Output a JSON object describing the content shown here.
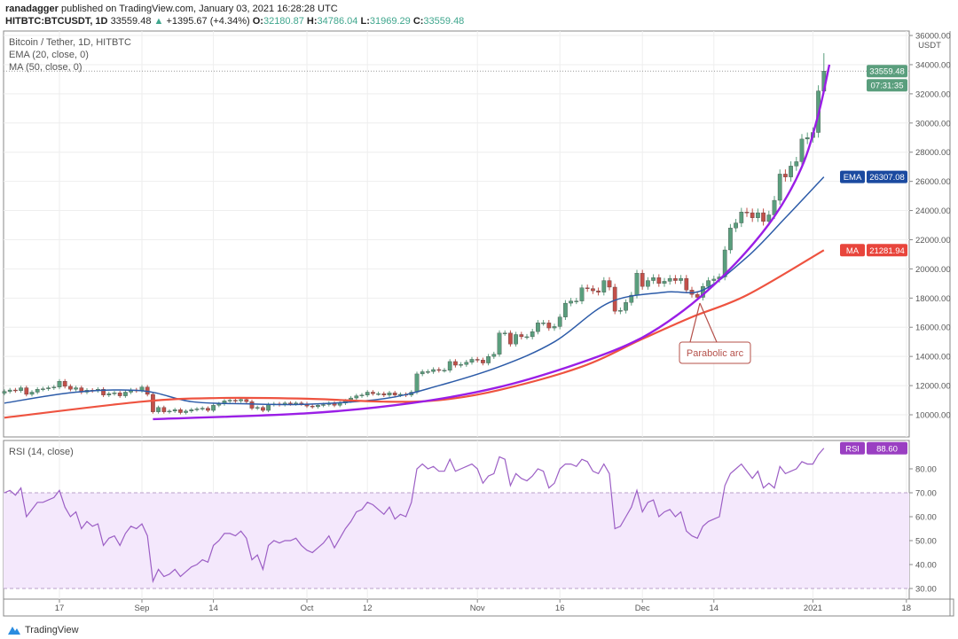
{
  "header": {
    "author": "ranadagger",
    "published": "published on TradingView.com, January 03, 2021 16:28:28 UTC",
    "symbol": "HITBTC:BTCUSDT, 1D",
    "last": "33559.48",
    "change": "+1395.67 (+4.34%)",
    "o_label": "O:",
    "o": "32180.87",
    "h_label": "H:",
    "h": "34786.04",
    "l_label": "L:",
    "l": "31969.29",
    "c_label": "C:",
    "c": "33559.48"
  },
  "legend": {
    "title": "Bitcoin / Tether, 1D, HITBTC",
    "ema": "EMA (20, close, 0)",
    "ma": "MA (50, close, 0)",
    "rsi": "RSI (14, close)"
  },
  "footer": {
    "brand": "TradingView"
  },
  "colors": {
    "up": "#5a9e7d",
    "down": "#c2504a",
    "ema": "#2c5ba8",
    "ma": "#ee5340",
    "arc": "#9a1ee6",
    "rsi": "#9c5fc5",
    "rsi_band": "#f4e8fc",
    "annotation": "#b5504a"
  },
  "chart_data": [
    {
      "type": "candlestick",
      "title": "Bitcoin / Tether, 1D, HITBTC",
      "currency": "USDT",
      "ylim": [
        9000,
        36000
      ],
      "y_ticks": [
        "36000.00",
        "34000.00",
        "32000.00",
        "30000.00",
        "28000.00",
        "26000.00",
        "24000.00",
        "22000.00",
        "20000.00",
        "18000.00",
        "16000.00",
        "14000.00",
        "12000.00",
        "10000.00"
      ],
      "x_ticks": [
        {
          "label": "17",
          "date": "2020-08-17"
        },
        {
          "label": "Sep",
          "date": "2020-09-01"
        },
        {
          "label": "14",
          "date": "2020-09-14"
        },
        {
          "label": "Oct",
          "date": "2020-10-01"
        },
        {
          "label": "12",
          "date": "2020-10-12"
        },
        {
          "label": "Nov",
          "date": "2020-11-01"
        },
        {
          "label": "16",
          "date": "2020-11-16"
        },
        {
          "label": "Dec",
          "date": "2020-12-01"
        },
        {
          "label": "14",
          "date": "2020-12-14"
        },
        {
          "label": "2021",
          "date": "2021-01-01"
        },
        {
          "label": "18",
          "date": "2021-01-18"
        }
      ],
      "closes_by_month": [
        {
          "month": "2020-08",
          "first_day": 7,
          "close": [
            11600,
            11700,
            11650,
            11850,
            11400,
            11550,
            11750,
            11780,
            11850,
            11900,
            12300,
            11950,
            11750,
            11850,
            11550,
            11680,
            11650,
            11750,
            11350,
            11450,
            11500,
            11300,
            11550,
            11700,
            11650
          ]
        },
        {
          "month": "2020-09",
          "first_day": 1,
          "close": [
            11900,
            11400,
            10200,
            10500,
            10200,
            10250,
            10350,
            10150,
            10250,
            10350,
            10400,
            10450,
            10300,
            10650,
            10750,
            10950,
            11000,
            10950,
            11050,
            10900,
            10450,
            10500,
            10300,
            10700,
            10750,
            10700,
            10800,
            10750,
            10800,
            10750
          ]
        },
        {
          "month": "2020-10",
          "first_day": 1,
          "close": [
            10600,
            10550,
            10650,
            10700,
            10800,
            10650,
            10800,
            10950,
            11150,
            11300,
            11350,
            11550,
            11450,
            11450,
            11350,
            11500,
            11350,
            11400,
            11350,
            11550,
            12800,
            12950,
            12960,
            13100,
            13050,
            13050,
            13650,
            13400,
            13450,
            13600,
            13800
          ]
        },
        {
          "month": "2020-11",
          "first_day": 1,
          "close": [
            13750,
            13550,
            14000,
            14150,
            15600,
            15600,
            14850,
            15500,
            15350,
            15350,
            15700,
            16300,
            16300,
            15950,
            16050,
            16700,
            17650,
            17800,
            17800,
            18700,
            18650,
            18500,
            18400,
            19200,
            18750,
            17100,
            17150,
            17700,
            18200,
            19700
          ]
        },
        {
          "month": "2020-12",
          "first_day": 1,
          "close": [
            18800,
            19200,
            19400,
            19000,
            19150,
            19350,
            19200,
            19350,
            18550,
            18250,
            18050,
            18800,
            19200,
            19300,
            19450,
            21300,
            22800,
            23150,
            23900,
            23850,
            23500,
            23850,
            23250,
            23700,
            24700,
            26500,
            26300,
            27050,
            27350,
            28900,
            29000
          ]
        },
        {
          "month": "2021-01",
          "first_day": 1,
          "close": [
            29350,
            32200,
            33559.48
          ]
        }
      ],
      "last_bar": {
        "open": 32180.87,
        "high": 34786.04,
        "low": 31969.29,
        "close": 33559.48
      },
      "series": [
        {
          "name": "EMA",
          "label_value": "26307.08",
          "points": [
            [
              "2020-08-07",
              10800
            ],
            [
              "2020-08-20",
              11550
            ],
            [
              "2020-09-01",
              11650
            ],
            [
              "2020-09-10",
              10900
            ],
            [
              "2020-09-20",
              10750
            ],
            [
              "2020-10-01",
              10720
            ],
            [
              "2020-10-15",
              11100
            ],
            [
              "2020-10-25",
              12000
            ],
            [
              "2020-11-05",
              13300
            ],
            [
              "2020-11-15",
              15000
            ],
            [
              "2020-11-25",
              17700
            ],
            [
              "2020-12-05",
              18400
            ],
            [
              "2020-12-12",
              18550
            ],
            [
              "2020-12-20",
              20800
            ],
            [
              "2020-12-27",
              23500
            ],
            [
              "2021-01-03",
              26307.08
            ]
          ]
        },
        {
          "name": "MA",
          "label_value": "21281.94",
          "points": [
            [
              "2020-08-07",
              9800
            ],
            [
              "2020-09-01",
              10900
            ],
            [
              "2020-09-15",
              11150
            ],
            [
              "2020-10-01",
              11100
            ],
            [
              "2020-10-15",
              10900
            ],
            [
              "2020-10-25",
              11000
            ],
            [
              "2020-11-05",
              11700
            ],
            [
              "2020-11-20",
              13300
            ],
            [
              "2020-12-01",
              15200
            ],
            [
              "2020-12-10",
              16700
            ],
            [
              "2020-12-20",
              18200
            ],
            [
              "2021-01-03",
              21281.94
            ]
          ]
        }
      ],
      "price_label": "33559.48",
      "countdown": "07:31:35",
      "annotation": {
        "text": "Parabolic arc",
        "points": [
          [
            "2020-09-03",
            9700
          ],
          [
            "2020-10-01",
            10100
          ],
          [
            "2020-10-20",
            10800
          ],
          [
            "2020-11-05",
            11900
          ],
          [
            "2020-11-20",
            13600
          ],
          [
            "2020-12-01",
            15300
          ],
          [
            "2020-12-10",
            17600
          ],
          [
            "2020-12-18",
            20400
          ],
          [
            "2020-12-25",
            23600
          ],
          [
            "2020-12-30",
            27000
          ],
          [
            "2021-01-02",
            30600
          ],
          [
            "2021-01-04",
            34000
          ]
        ]
      }
    },
    {
      "type": "line",
      "title": "RSI (14, close)",
      "ylim": [
        28,
        92
      ],
      "y_ticks": [
        "80.00",
        "70.00",
        "60.00",
        "50.00",
        "40.00",
        "30.00"
      ],
      "band": [
        30,
        70
      ],
      "label_value": "88.60",
      "values": [
        70,
        71,
        69,
        72,
        60,
        63,
        66,
        66,
        67,
        68,
        71,
        64,
        60,
        62,
        55,
        58,
        56,
        57,
        48,
        51,
        52,
        48,
        53,
        56,
        55,
        57,
        52,
        33,
        38,
        35,
        36,
        38,
        35,
        37,
        39,
        40,
        42,
        41,
        48,
        50,
        53,
        53,
        52,
        54,
        51,
        42,
        44,
        38,
        48,
        50,
        49,
        50,
        50,
        51,
        48,
        46,
        45,
        47,
        49,
        52,
        47,
        51,
        55,
        58,
        62,
        63,
        66,
        65,
        63,
        61,
        64,
        59,
        61,
        60,
        66,
        80,
        82,
        80,
        81,
        79,
        79,
        84,
        79,
        80,
        81,
        82,
        80,
        74,
        77,
        78,
        85,
        84,
        73,
        78,
        76,
        75,
        77,
        80,
        79,
        72,
        74,
        80,
        82,
        82,
        81,
        84,
        83,
        79,
        78,
        82,
        78,
        55,
        56,
        60,
        64,
        71,
        62,
        66,
        67,
        60,
        62,
        63,
        60,
        62,
        54,
        52,
        51,
        56,
        58,
        59,
        60,
        73,
        78,
        80,
        82,
        79,
        76,
        79,
        72,
        74,
        72,
        81,
        78,
        79,
        80,
        83,
        82,
        82,
        86,
        88.6
      ]
    }
  ]
}
